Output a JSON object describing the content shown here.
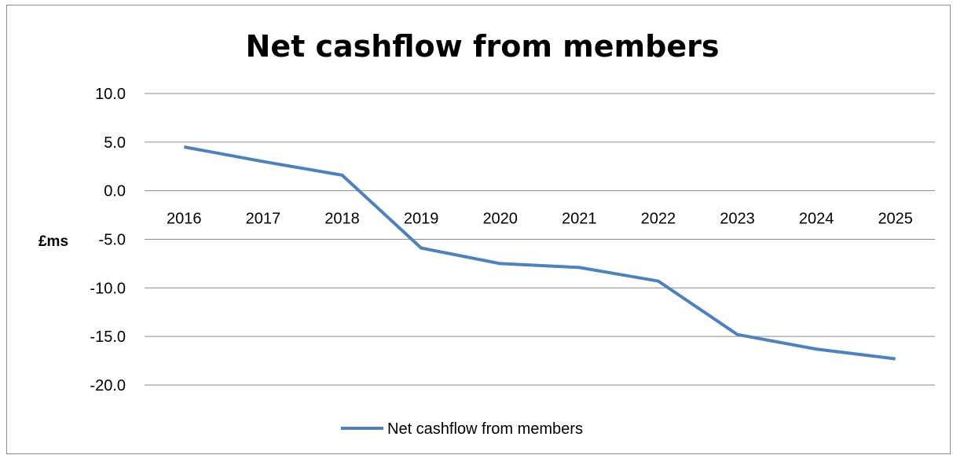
{
  "chart_data": {
    "type": "line",
    "title": "Net cashflow from members",
    "ylabel": "£ms",
    "xlabel": "",
    "categories": [
      "2016",
      "2017",
      "2018",
      "2019",
      "2020",
      "2021",
      "2022",
      "2023",
      "2024",
      "2025"
    ],
    "series": [
      {
        "name": "Net cashflow from members",
        "color": "#4f81bd",
        "values": [
          4.5,
          3.0,
          1.6,
          -5.9,
          -7.5,
          -7.9,
          -9.3,
          -14.8,
          -16.3,
          -17.3
        ]
      }
    ],
    "ylim": [
      -20,
      10
    ],
    "yticks": [
      "10.0",
      "5.0",
      "0.0",
      "-5.0",
      "-10.0",
      "-15.0",
      "-20.0"
    ],
    "grid": true,
    "legend_position": "bottom"
  }
}
